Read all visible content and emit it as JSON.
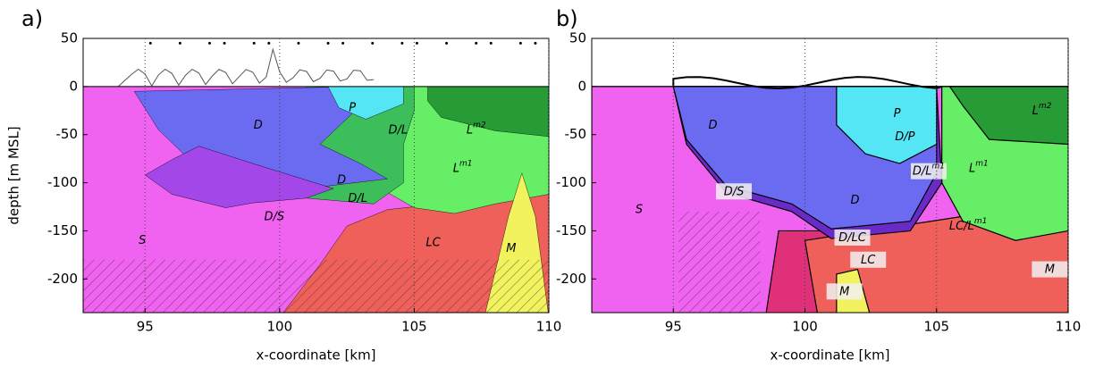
{
  "chart_data": [
    {
      "type": "section",
      "panel": "a)",
      "xlabel": "x-coordinate [km]",
      "ylabel": "depth [m MSL]",
      "xlim": [
        92.7,
        110
      ],
      "ylim": [
        -235,
        50
      ],
      "xticks": [
        95,
        100,
        105,
        110
      ],
      "yticks": [
        50,
        0,
        -50,
        -100,
        -150,
        -200
      ],
      "grid": true,
      "labels": [
        {
          "text": "D"
        },
        {
          "text": "P"
        },
        {
          "text": "D/L"
        },
        {
          "text": "L",
          "sup": "m2"
        },
        {
          "text": "D"
        },
        {
          "text": "D/L"
        },
        {
          "text": "L",
          "sup": "m1"
        },
        {
          "text": "D/S"
        },
        {
          "text": "S"
        },
        {
          "text": "LC"
        },
        {
          "text": "M"
        }
      ]
    },
    {
      "type": "section",
      "panel": "b)",
      "xlabel": "x-coordinate [km]",
      "xlim": [
        91.9,
        110
      ],
      "ylim": [
        -235,
        50
      ],
      "xticks": [
        95,
        100,
        105,
        110
      ],
      "yticks": [
        50,
        0,
        -50,
        -100,
        -150,
        -200
      ],
      "grid": true,
      "labels": [
        {
          "text": "D"
        },
        {
          "text": "P"
        },
        {
          "text": "D/P"
        },
        {
          "text": "L",
          "sup": "m2"
        },
        {
          "text": "L",
          "sup": "m1"
        },
        {
          "text": "D/L",
          "sup": "m1"
        },
        {
          "text": "D/S"
        },
        {
          "text": "D"
        },
        {
          "text": "S"
        },
        {
          "text": "LC/L",
          "sup": "m1"
        },
        {
          "text": "D/LC"
        },
        {
          "text": "LC"
        },
        {
          "text": "M"
        },
        {
          "text": "M"
        }
      ]
    }
  ]
}
